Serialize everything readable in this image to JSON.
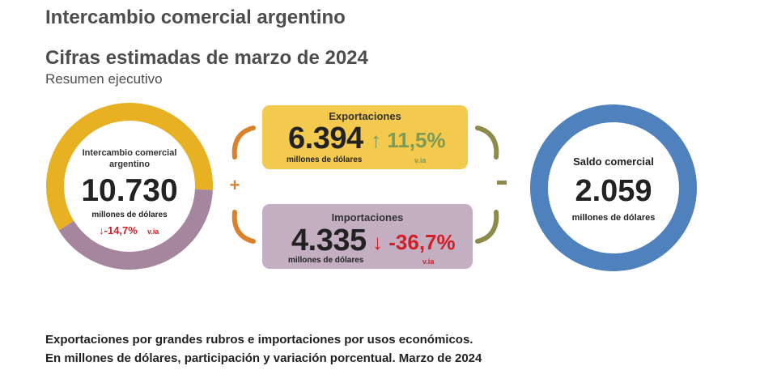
{
  "header": {
    "title": "Intercambio comercial argentino",
    "subtitle": "Cifras estimadas de marzo de 2024",
    "caption": "Resumen ejecutivo"
  },
  "chart_data": {
    "type": "infographic",
    "title": "Cifras estimadas de marzo de 2024",
    "intercambio": {
      "label": "Intercambio comercial argentino",
      "value": "10.730",
      "unit": "millones de dólares",
      "variation": "-14,7%",
      "variation_suffix": "v.ia",
      "slices": [
        {
          "name": "Exportaciones",
          "value": 6394,
          "color": "#E8B124"
        },
        {
          "name": "Importaciones",
          "value": 4335,
          "color": "#A5869E"
        }
      ]
    },
    "exportaciones": {
      "label": "Exportaciones",
      "value": "6.394",
      "unit": "millones de dólares",
      "variation": "11,5%",
      "variation_suffix": "v.ia"
    },
    "importaciones": {
      "label": "Importaciones",
      "value": "4.335",
      "unit": "millones de dólares",
      "variation": "-36,7%",
      "variation_suffix": "v.ia"
    },
    "saldo": {
      "label": "Saldo comercial",
      "value": "2.059",
      "unit": "millones de dólares",
      "color": "#4F81BD"
    },
    "operators": {
      "plus": "+",
      "minus": "-"
    }
  },
  "colors": {
    "gold": "#E8B124",
    "mauve": "#A5869E",
    "blue": "#4F81BD",
    "export_box": "#F3C94E",
    "import_box": "#C4AEC2",
    "green": "#7E9A55",
    "red": "#D21F26",
    "bracket_orange": "#D9822B",
    "bracket_olive": "#8E8B4A"
  },
  "footer": {
    "line1": "Exportaciones por grandes rubros e importaciones por usos económicos.",
    "line2": "En millones de dólares, participación y variación porcentual. Marzo de 2024"
  }
}
